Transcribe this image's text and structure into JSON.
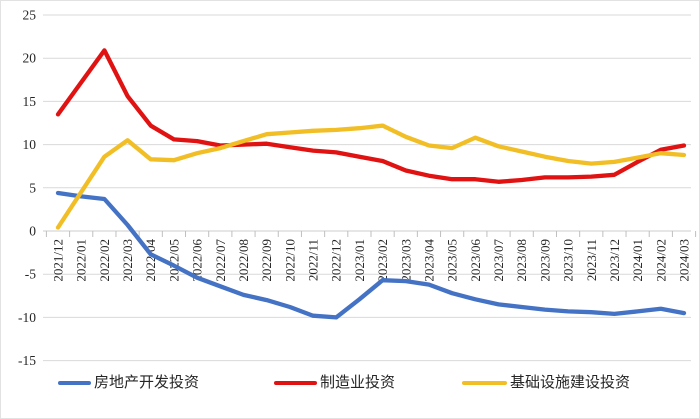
{
  "chart_data": {
    "type": "line",
    "categories": [
      "2021/12",
      "2022/01",
      "2022/02",
      "2022/03",
      "2022/04",
      "2022/05",
      "2022/06",
      "2022/07",
      "2022/08",
      "2022/09",
      "2022/10",
      "2022/11",
      "2022/12",
      "2023/01",
      "2023/02",
      "2023/03",
      "2023/04",
      "2023/05",
      "2023/06",
      "2023/07",
      "2023/08",
      "2023/09",
      "2023/10",
      "2023/11",
      "2023/12",
      "2024/01",
      "2024/02",
      "2024/03"
    ],
    "series": [
      {
        "name": "房地产开发投资",
        "color": "#4472C4",
        "values": [
          4.4,
          4.0,
          3.7,
          0.7,
          -2.7,
          -4.0,
          -5.4,
          -6.4,
          -7.4,
          -8.0,
          -8.8,
          -9.8,
          -10.0,
          -7.9,
          -5.7,
          -5.8,
          -6.2,
          -7.2,
          -7.9,
          -8.5,
          -8.8,
          -9.1,
          -9.3,
          -9.4,
          -9.6,
          -9.3,
          -9.0,
          -9.5
        ]
      },
      {
        "name": "制造业投资",
        "color": "#E01212",
        "values": [
          13.5,
          17.2,
          20.9,
          15.6,
          12.2,
          10.6,
          10.4,
          9.9,
          10.0,
          10.1,
          9.7,
          9.3,
          9.1,
          8.6,
          8.1,
          7.0,
          6.4,
          6.0,
          6.0,
          5.7,
          5.9,
          6.2,
          6.2,
          6.3,
          6.5,
          8.0,
          9.4,
          9.9
        ]
      },
      {
        "name": "基础设施建设投资",
        "color": "#F1BE25",
        "values": [
          0.4,
          4.5,
          8.6,
          10.5,
          8.3,
          8.2,
          9.0,
          9.6,
          10.4,
          11.2,
          11.4,
          11.6,
          11.7,
          11.9,
          12.2,
          10.9,
          9.9,
          9.6,
          10.8,
          9.8,
          9.2,
          8.6,
          8.1,
          7.8,
          8.0,
          8.5,
          9.0,
          8.8
        ]
      }
    ],
    "yticks": [
      25,
      20,
      15,
      10,
      5,
      0,
      -5,
      -10,
      -15
    ],
    "ylim": [
      -15,
      25
    ],
    "ytick_step": 5,
    "grid": true,
    "legend_position": "bottom"
  },
  "colors": {
    "gridline": "#D9D9D9",
    "zero_axis": "#CDCDCD",
    "tick": "#BFBFBF",
    "axis_text": "#262626",
    "background": "#FFFFFF"
  }
}
